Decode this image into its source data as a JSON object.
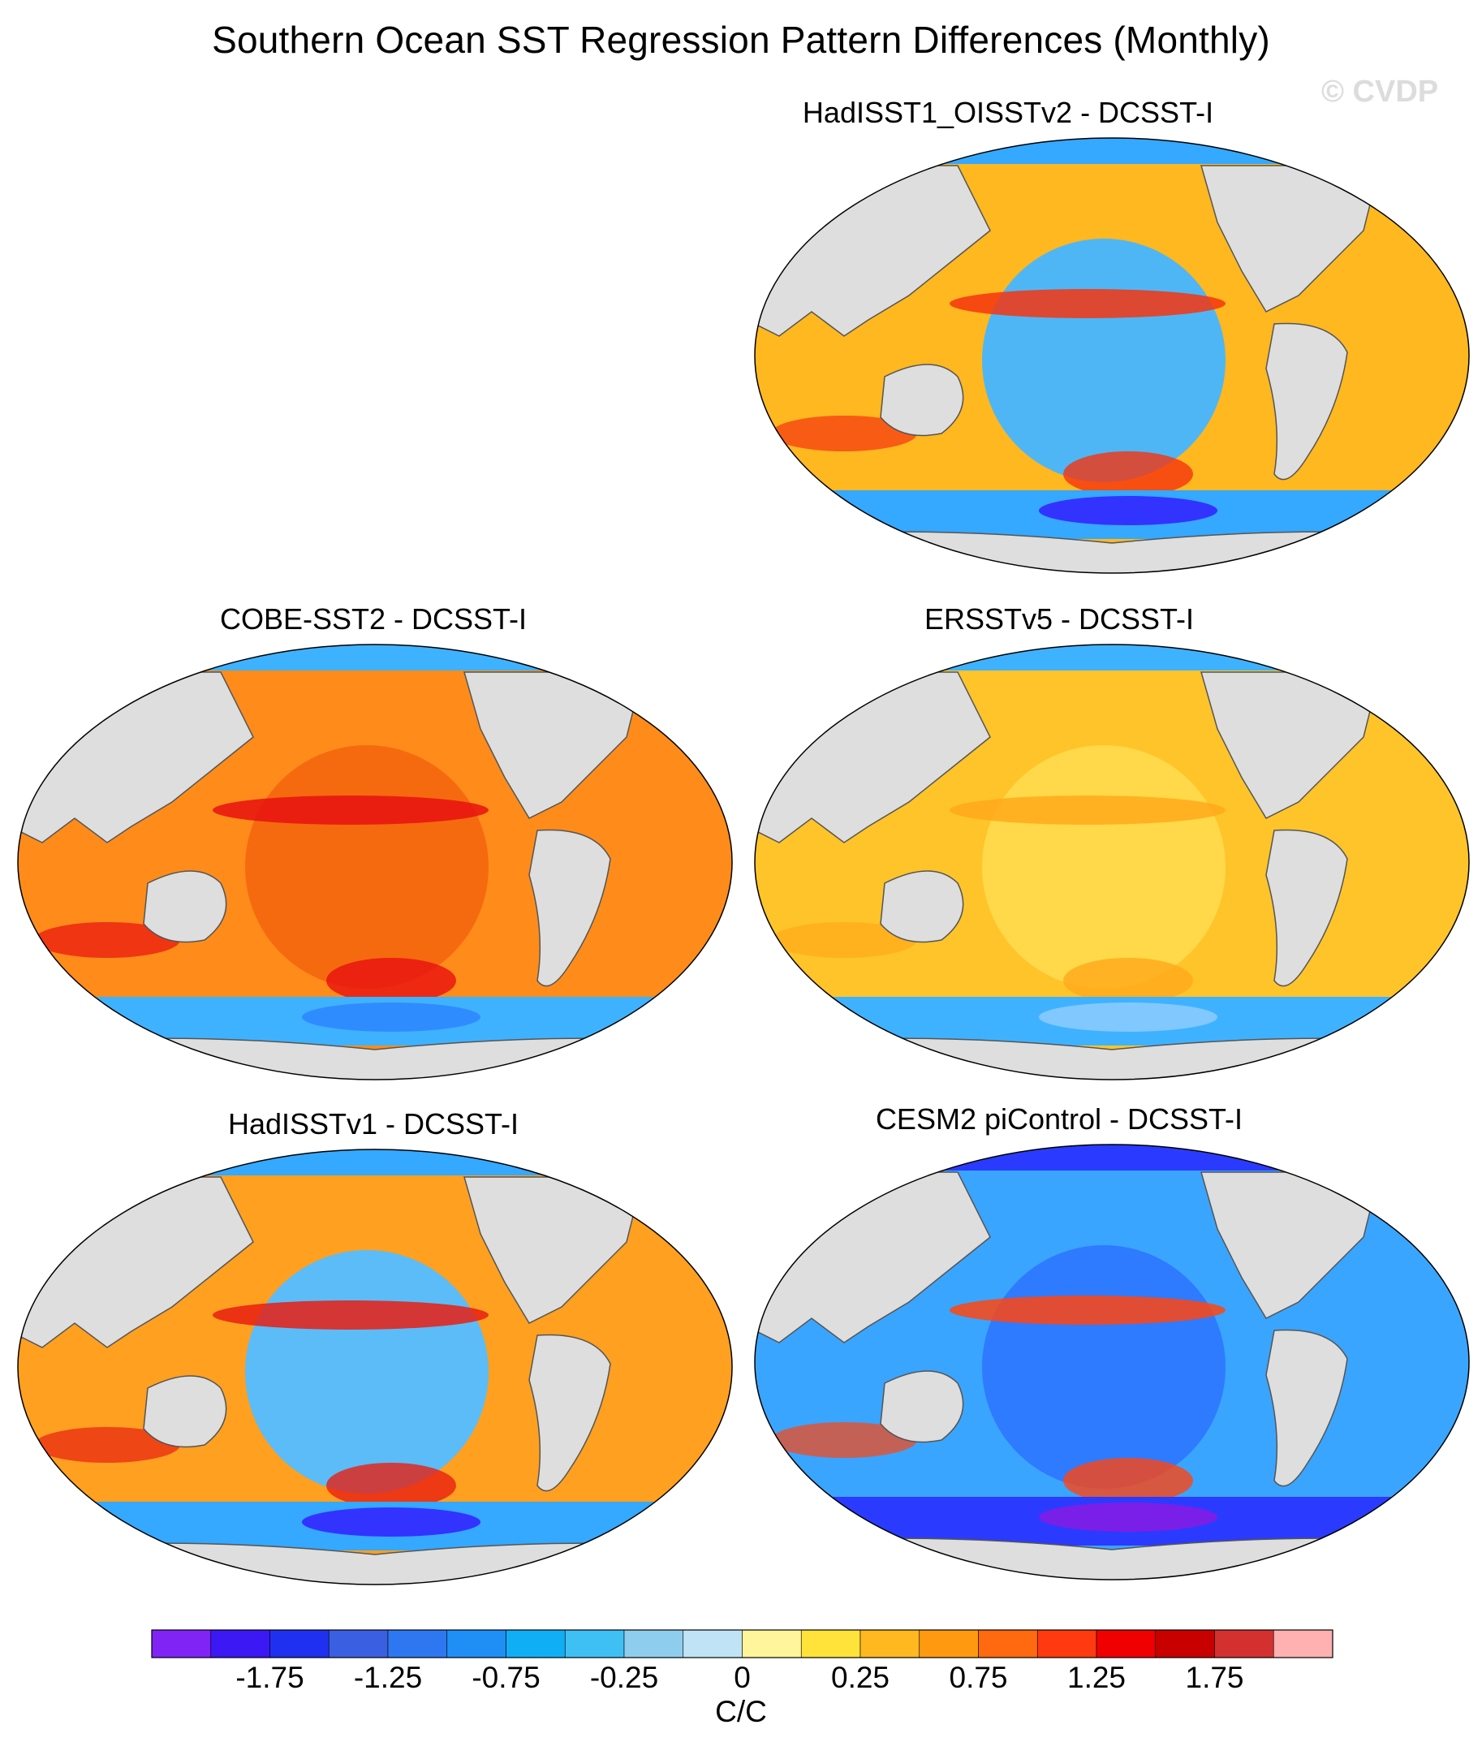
{
  "title": "Southern Ocean SST Regression Pattern Differences (Monthly)",
  "watermark": "© CVDP",
  "panels": [
    {
      "title": "HadISST1_OISSTv2 - DCSST-I",
      "base": "#ffb81f",
      "pacific": "#4fb6f5",
      "south_band": "#35a8ff",
      "accent": "#f5350f",
      "deep": "#3333ff"
    },
    {
      "title": "COBE-SST2 - DCSST-I",
      "base": "#ff8c1a",
      "pacific": "#f56a0f",
      "south_band": "#3fb2ff",
      "accent": "#e81010",
      "deep": "#2f8cff"
    },
    {
      "title": "ERSSTv5 - DCSST-I",
      "base": "#ffc42a",
      "pacific": "#ffd94a",
      "south_band": "#3fb2ff",
      "accent": "#ffa91a",
      "deep": "#80c8ff"
    },
    {
      "title": "HadISSTv1 - DCSST-I",
      "base": "#ffa020",
      "pacific": "#5cbcf7",
      "south_band": "#35a8ff",
      "accent": "#e81f12",
      "deep": "#3333ff"
    },
    {
      "title": "CESM2 piControl - DCSST-I",
      "base": "#3aa5ff",
      "pacific": "#2e7bff",
      "south_band": "#2a3bff",
      "accent": "#ff4510",
      "deep": "#7a1fe8"
    }
  ],
  "colorbar": {
    "colors": [
      "#7f24f5",
      "#3c18f5",
      "#2030f0",
      "#3a5fe0",
      "#2d78f0",
      "#1f8ff5",
      "#10aff5",
      "#3fc0f5",
      "#8fcdee",
      "#c0e4f5",
      "#fff59a",
      "#ffe23a",
      "#ffb81f",
      "#ff9a10",
      "#ff6a10",
      "#ff3a10",
      "#f00000",
      "#c80000",
      "#d43030",
      "#ffb0b0"
    ],
    "tick_labels": [
      "-1.75",
      "-1.25",
      "-0.75",
      "-0.25",
      "0",
      "0.25",
      "0.75",
      "1.25",
      "1.75"
    ],
    "units": "C/C"
  }
}
